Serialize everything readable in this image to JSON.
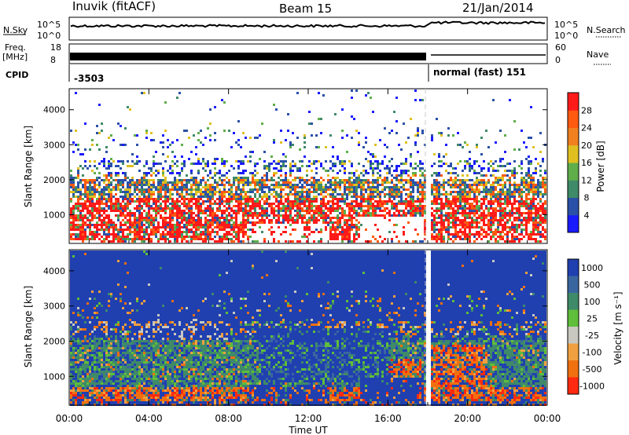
{
  "header": {
    "station": "Inuvik (fitACF)",
    "beam": "Beam 15",
    "date": "21/Jan/2014"
  },
  "top_panels": {
    "nsky_label": "N.Sky",
    "nsky_ticks": [
      "10^5",
      "10^0"
    ],
    "nsearch_label": "N.Search",
    "nsearch_ticks": [
      "10^5",
      "10^0"
    ],
    "freq_label": "Freq.",
    "freq_unit": "[MHz]",
    "freq_ticks": [
      "18",
      "8"
    ],
    "nave_label": "Nave",
    "nave_ticks": [
      "60",
      "0"
    ],
    "cpid_label": "CPID",
    "cpid_before": "-3503",
    "cpid_after": "normal (fast) 151"
  },
  "chart_data": [
    {
      "type": "heatmap",
      "name": "power-panel",
      "ylabel": "Slant Range [km]",
      "ylim": [
        180,
        4600
      ],
      "yticks": [
        "1000",
        "2000",
        "3000",
        "4000"
      ],
      "colorbar_label": "Power [dB]",
      "colorbar_ticks": [
        "4",
        "8",
        "12",
        "16",
        "20",
        "24",
        "28"
      ],
      "colors": [
        "#1a1aff",
        "#2a50a8",
        "#3f8a68",
        "#5fae4a",
        "#e0c020",
        "#f08020",
        "#ff5a10",
        "#ff1a1a"
      ]
    },
    {
      "type": "heatmap",
      "name": "velocity-panel",
      "ylabel": "Slant Range [km]",
      "ylim": [
        180,
        4600
      ],
      "yticks": [
        "1000",
        "2000",
        "3000",
        "4000"
      ],
      "colorbar_label": "Velocity [m s⁻¹]",
      "colorbar_ticks": [
        "1000",
        "500",
        "100",
        "25",
        "-25",
        "-100",
        "-500",
        "-1000"
      ],
      "colors": [
        "#2040b0",
        "#3a66a0",
        "#3f8a68",
        "#5fbe3a",
        "#c8c8c0",
        "#f0a040",
        "#f07010",
        "#ff2a10"
      ]
    }
  ],
  "time_axis": {
    "xlabel": "Time UT",
    "ticks": [
      "00:00",
      "04:00",
      "08:00",
      "12:00",
      "16:00",
      "20:00",
      "00:00"
    ]
  }
}
